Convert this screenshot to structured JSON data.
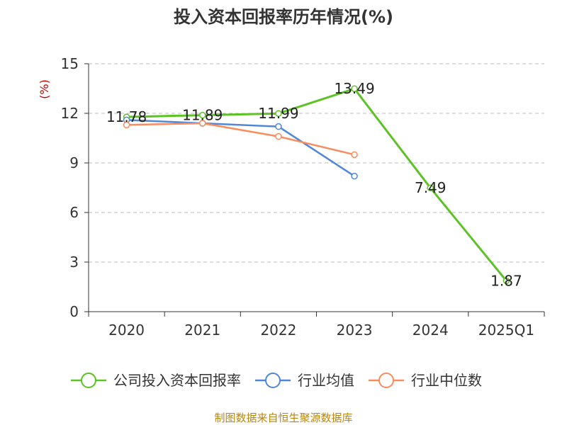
{
  "chart_data": {
    "type": "line",
    "title": "投入资本回报率历年情况(%)",
    "ylabel": "(%)",
    "xlabel": "",
    "categories": [
      "2020",
      "2021",
      "2022",
      "2023",
      "2024",
      "2025Q1"
    ],
    "ylim": [
      0,
      15
    ],
    "yticks": [
      0,
      3,
      6,
      9,
      12,
      15
    ],
    "grid": true,
    "legend_position": "bottom",
    "series": [
      {
        "name": "公司投入资本回报率",
        "values": [
          11.78,
          11.89,
          11.99,
          13.49,
          7.49,
          1.87
        ],
        "labels": [
          "11.78",
          "11.89",
          "11.99",
          "13.49",
          "7.49",
          "1.87"
        ],
        "color": "#5cc225"
      },
      {
        "name": "行业均值",
        "values": [
          11.6,
          11.4,
          11.2,
          8.2,
          null,
          null
        ],
        "color": "#5087d8"
      },
      {
        "name": "行业中位数",
        "values": [
          11.3,
          11.4,
          10.6,
          9.5,
          null,
          null
        ],
        "color": "#f88c5c"
      }
    ]
  },
  "source": "制图数据来自恒生聚源数据库"
}
